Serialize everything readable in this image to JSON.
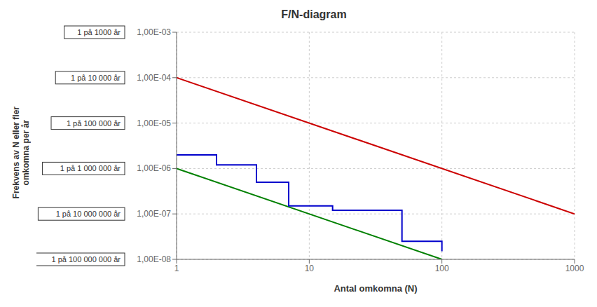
{
  "chart_data": {
    "type": "line",
    "title": "F/N-diagram",
    "xlabel": "Antal omkomna (N)",
    "ylabel": "Frekvens av N eller fler\nomkomna per år",
    "log": true,
    "grid": true,
    "xlim": [
      1,
      1000
    ],
    "ylim": [
      1e-08,
      0.001
    ],
    "xticks": [
      1,
      10,
      100,
      1000
    ],
    "yticks": [
      {
        "value": 1e-08,
        "label": "1,00E-08"
      },
      {
        "value": 1e-07,
        "label": "1,00E-07"
      },
      {
        "value": 1e-06,
        "label": "1,00E-06"
      },
      {
        "value": 1e-05,
        "label": "1,00E-05"
      },
      {
        "value": 0.0001,
        "label": "1,00E-04"
      },
      {
        "value": 0.001,
        "label": "1,00E-03"
      }
    ],
    "series": [
      {
        "color": "#cc0000",
        "x": [
          1,
          1000
        ],
        "values": [
          0.0001,
          1e-07
        ]
      },
      {
        "color": "#008000",
        "x": [
          1,
          100
        ],
        "values": [
          1e-06,
          1e-08
        ]
      },
      {
        "color": "#0000cc",
        "x": [
          1,
          2,
          2,
          4,
          4,
          7,
          7,
          15,
          15,
          50,
          50,
          100,
          100
        ],
        "values": [
          2e-06,
          2e-06,
          1.2e-06,
          1.2e-06,
          5e-07,
          5e-07,
          1.5e-07,
          1.5e-07,
          1.2e-07,
          1.2e-07,
          2.5e-08,
          2.5e-08,
          1.5e-08
        ]
      }
    ],
    "annotations": [
      {
        "text": "1 på 1000 år",
        "y": 0.001
      },
      {
        "text": "1 på 10 000 år",
        "y": 0.0001
      },
      {
        "text": "1 på 100 000 år",
        "y": 1e-05
      },
      {
        "text": "1 på 1 000 000 år",
        "y": 1e-06
      },
      {
        "text": "1 på 10 000 000 år",
        "y": 1e-07
      },
      {
        "text": "1 på 100 000 000 år",
        "y": 1e-08
      }
    ]
  }
}
